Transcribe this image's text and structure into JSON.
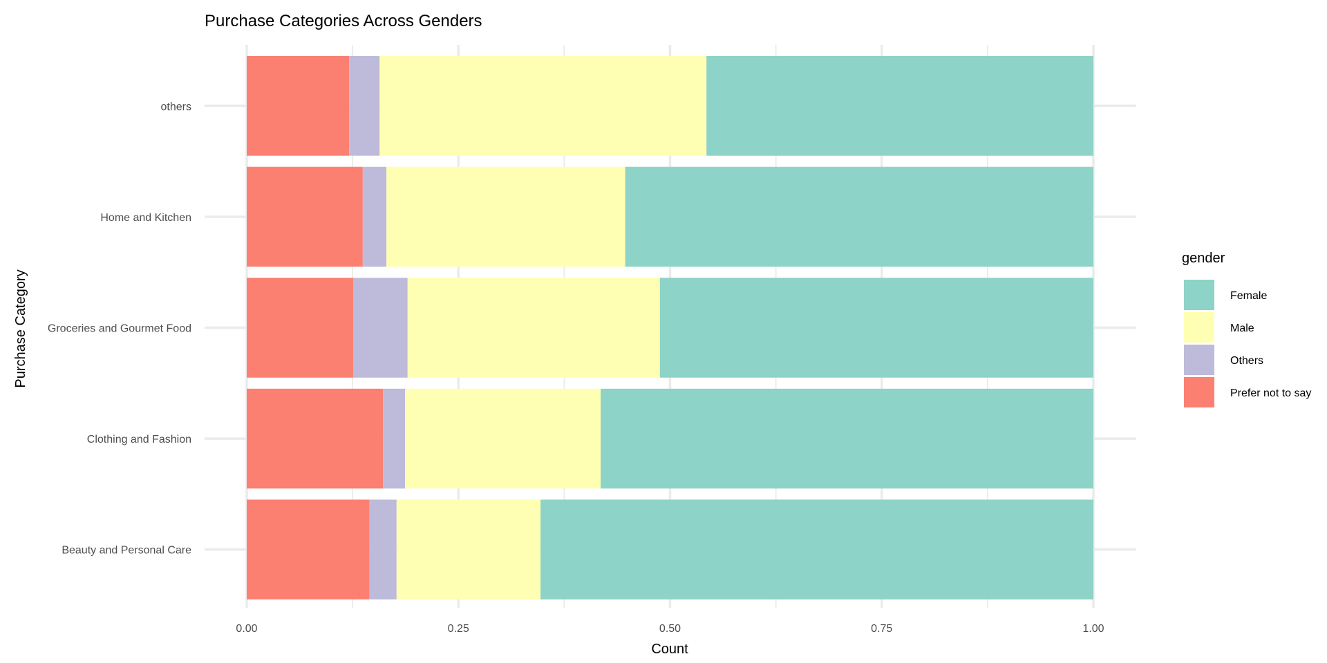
{
  "chart_data": {
    "type": "bar",
    "orientation": "horizontal",
    "stacked": "fill",
    "title": "Purchase Categories Across Genders",
    "xlabel": "Count",
    "ylabel": "Purchase Category",
    "xlim": [
      0,
      1
    ],
    "x_ticks": [
      "0.00",
      "0.25",
      "0.50",
      "0.75",
      "1.00"
    ],
    "grid": true,
    "categories": [
      "Beauty and Personal Care",
      "Clothing and Fashion",
      "Groceries and Gourmet Food",
      "Home and Kitchen",
      "others"
    ],
    "series": [
      {
        "name": "Prefer not to say",
        "color": "#FB8072",
        "values": [
          0.145,
          0.161,
          0.126,
          0.137,
          0.121
        ]
      },
      {
        "name": "Others",
        "color": "#BEBADA",
        "values": [
          0.032,
          0.026,
          0.064,
          0.028,
          0.036
        ]
      },
      {
        "name": "Male",
        "color": "#FFFFB3",
        "values": [
          0.17,
          0.231,
          0.298,
          0.282,
          0.386
        ]
      },
      {
        "name": "Female",
        "color": "#8DD3C7",
        "values": [
          0.653,
          0.582,
          0.512,
          0.553,
          0.457
        ]
      }
    ],
    "legend": {
      "title": "gender",
      "position": "right",
      "order": [
        "Female",
        "Male",
        "Others",
        "Prefer not to say"
      ]
    }
  }
}
